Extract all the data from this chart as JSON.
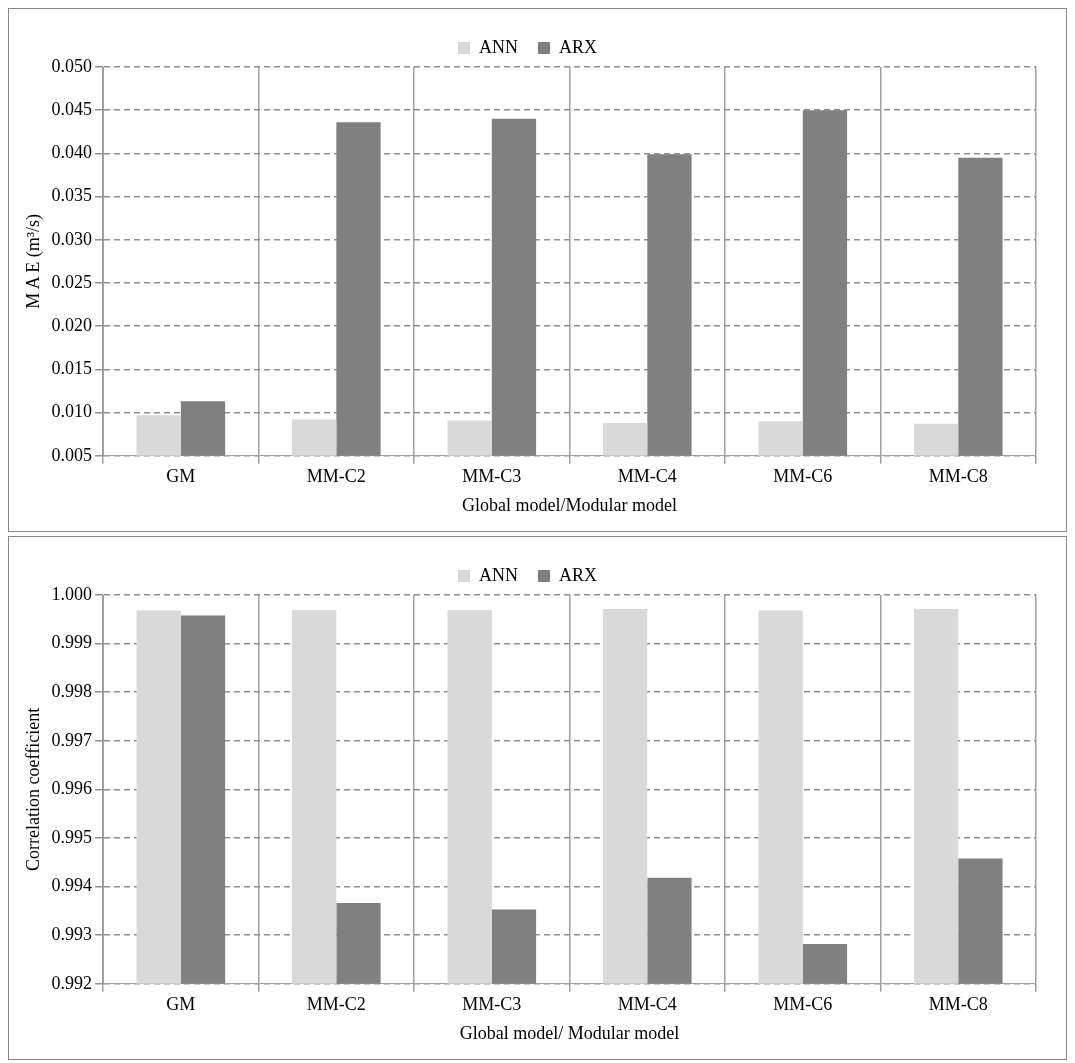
{
  "chart_data": [
    {
      "type": "bar",
      "ylabel": "M A E (m³/s)",
      "xlabel": "Global model/Modular model",
      "categories": [
        "GM",
        "MM-C2",
        "MM-C3",
        "MM-C4",
        "MM-C6",
        "MM-C8"
      ],
      "series": [
        {
          "name": "ANN",
          "color": "#d9d9d9",
          "values": [
            0.0097,
            0.0092,
            0.0091,
            0.0088,
            0.009,
            0.0087
          ]
        },
        {
          "name": "ARX",
          "color": "#808080",
          "values": [
            0.0113,
            0.0436,
            0.044,
            0.0399,
            0.045,
            0.0395
          ]
        }
      ],
      "ylim": [
        0.005,
        0.05
      ],
      "yticks": [
        {
          "value": 0.005,
          "label": "0.005"
        },
        {
          "value": 0.01,
          "label": "0.010"
        },
        {
          "value": 0.015,
          "label": "0.015"
        },
        {
          "value": 0.02,
          "label": "0.020"
        },
        {
          "value": 0.025,
          "label": "0.025"
        },
        {
          "value": 0.03,
          "label": "0.030"
        },
        {
          "value": 0.035,
          "label": "0.035"
        },
        {
          "value": 0.04,
          "label": "0.040"
        },
        {
          "value": 0.045,
          "label": "0.045"
        },
        {
          "value": 0.05,
          "label": "0.050"
        }
      ],
      "grid": true,
      "legend": "top"
    },
    {
      "type": "bar",
      "ylabel": "Correlation coefficient",
      "xlabel": "Global model/ Modular model",
      "categories": [
        "GM",
        "MM-C2",
        "MM-C3",
        "MM-C4",
        "MM-C6",
        "MM-C8"
      ],
      "series": [
        {
          "name": "ANN",
          "color": "#d9d9d9",
          "values": [
            0.99968,
            0.99969,
            0.99969,
            0.99971,
            0.99968,
            0.99971
          ]
        },
        {
          "name": "ARX",
          "color": "#808080",
          "values": [
            0.99958,
            0.99366,
            0.99353,
            0.99418,
            0.99282,
            0.99458
          ]
        }
      ],
      "ylim": [
        0.992,
        1.0
      ],
      "yticks": [
        0.992,
        0.993,
        0.994,
        0.995,
        0.996,
        0.997,
        0.998,
        0.999,
        {
          "value": 1.0,
          "label": "1.000"
        }
      ],
      "grid": true,
      "legend": "top"
    }
  ]
}
